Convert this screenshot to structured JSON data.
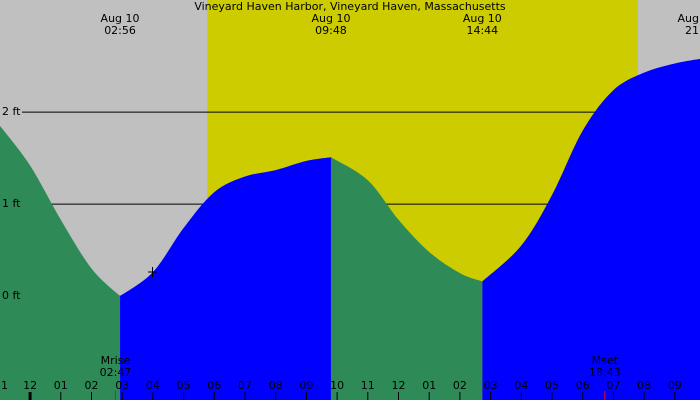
{
  "chart_data": {
    "type": "tide",
    "title": "Vineyard Haven Harbor, Vineyard Haven, Massachusetts",
    "xlim": [
      -0.98,
      21.82
    ],
    "ylim": [
      -1.13,
      3.22
    ],
    "yticks": [
      {
        "value": 0,
        "label": "0 ft"
      },
      {
        "value": 1,
        "label": "1 ft"
      },
      {
        "value": 2,
        "label": "2 ft"
      }
    ],
    "xticks": [
      {
        "value": -1,
        "label": "1"
      },
      {
        "value": 0,
        "label": "12"
      },
      {
        "value": 1,
        "label": "01"
      },
      {
        "value": 2,
        "label": "02"
      },
      {
        "value": 3,
        "label": "03"
      },
      {
        "value": 4,
        "label": "04"
      },
      {
        "value": 5,
        "label": "05"
      },
      {
        "value": 6,
        "label": "06"
      },
      {
        "value": 7,
        "label": "07"
      },
      {
        "value": 8,
        "label": "08"
      },
      {
        "value": 9,
        "label": "09"
      },
      {
        "value": 10,
        "label": "10"
      },
      {
        "value": 11,
        "label": "11"
      },
      {
        "value": 12,
        "label": "12"
      },
      {
        "value": 13,
        "label": "01"
      },
      {
        "value": 14,
        "label": "02"
      },
      {
        "value": 15,
        "label": "03"
      },
      {
        "value": 16,
        "label": "04"
      },
      {
        "value": 17,
        "label": "05"
      },
      {
        "value": 18,
        "label": "06"
      },
      {
        "value": 19,
        "label": "07"
      },
      {
        "value": 20,
        "label": "08"
      },
      {
        "value": 21,
        "label": "09"
      }
    ],
    "night_color": "#c0c0c0",
    "day_color": "#cccc00",
    "daylight": [
      5.77,
      19.8
    ],
    "falling_color": "#2e8b57",
    "rising_color": "#0000ff",
    "x": [
      -1,
      0,
      1,
      2,
      2.93,
      4,
      5,
      6,
      7,
      8,
      9,
      9.8,
      11,
      12,
      13,
      14,
      14.73,
      16,
      17,
      18,
      19,
      20,
      21,
      22
    ],
    "values": [
      1.86,
      1.42,
      0.83,
      0.3,
      0,
      0.26,
      0.74,
      1.13,
      1.3,
      1.37,
      1.47,
      1.51,
      1.26,
      0.83,
      0.48,
      0.25,
      0.16,
      0.55,
      1.1,
      1.8,
      2.24,
      2.43,
      2.53,
      2.59
    ],
    "extremes": [
      {
        "x": 2.93,
        "date": "Aug 10",
        "time": "02:56"
      },
      {
        "x": 9.8,
        "date": "Aug 10",
        "time": "09:48"
      },
      {
        "x": 14.73,
        "date": "Aug 10",
        "time": "14:44"
      },
      {
        "x": 21.9,
        "date": "Aug",
        "time": "21"
      }
    ],
    "moon": [
      {
        "x": 2.78,
        "name": "Mrise",
        "time": "02:47"
      },
      {
        "x": 18.72,
        "name": "Mset",
        "time": "18:43"
      }
    ]
  }
}
